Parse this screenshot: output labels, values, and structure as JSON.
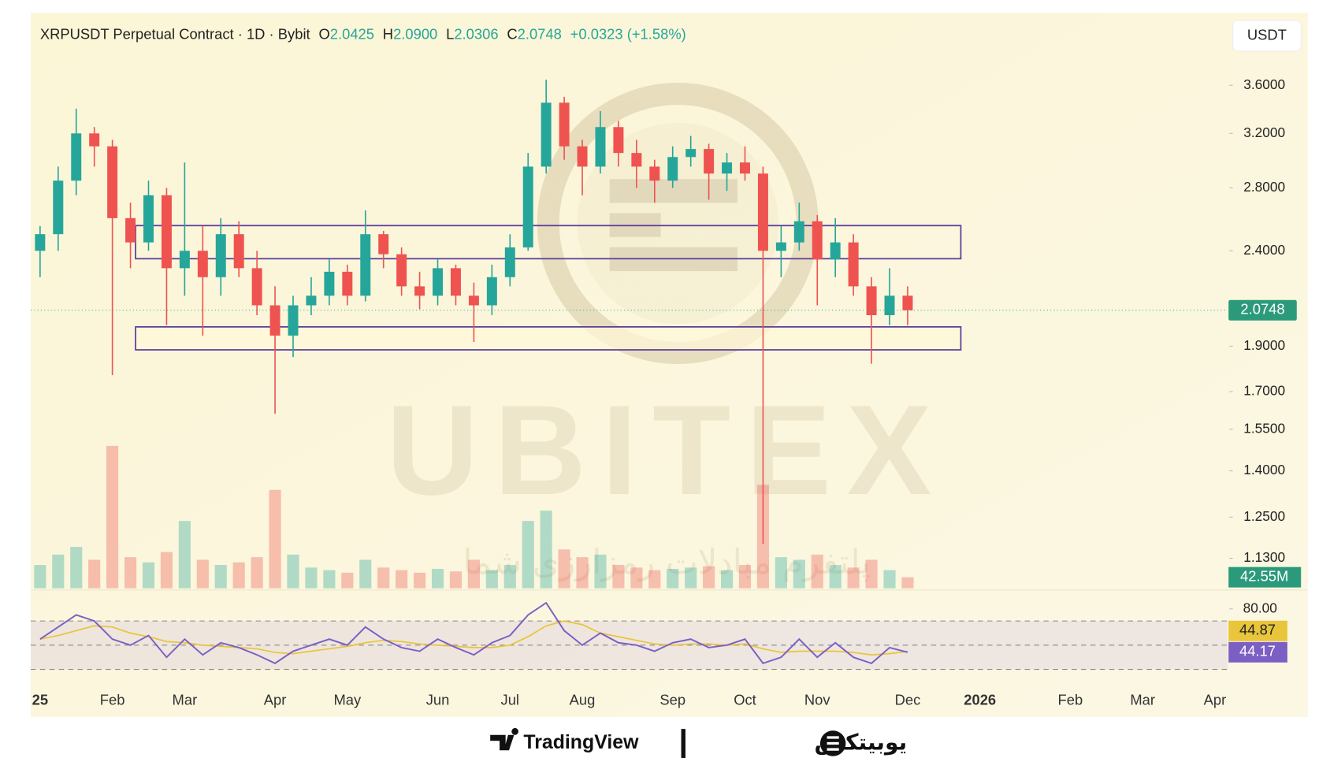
{
  "chart_data": {
    "type": "candlestick",
    "header": {
      "symbol": "XRPUSDT Perpetual Contract · 1D · Bybit",
      "open_label": "O",
      "open": "2.0425",
      "high_label": "H",
      "high": "2.0900",
      "low_label": "L",
      "low": "2.0306",
      "close_label": "C",
      "close": "2.0748",
      "change": "+0.0323 (+1.58%)"
    },
    "currency_button": "USDT",
    "categories": [
      "25",
      null,
      null,
      null,
      "Feb",
      null,
      null,
      null,
      "Mar",
      null,
      null,
      null,
      null,
      "Apr",
      null,
      null,
      null,
      "May",
      null,
      null,
      null,
      null,
      "Jun",
      null,
      null,
      null,
      "Jul",
      null,
      null,
      null,
      "Aug",
      null,
      null,
      null,
      null,
      "Sep",
      null,
      null,
      null,
      "Oct",
      null,
      null,
      null,
      "Nov",
      null,
      null,
      null,
      null,
      "Dec",
      null,
      null,
      null,
      "2026",
      null,
      null,
      null,
      null,
      "Feb",
      null,
      null,
      null,
      "Mar",
      null,
      null,
      null,
      "Apr"
    ],
    "open": [
      2.4,
      2.5,
      2.85,
      3.2,
      3.1,
      2.6,
      2.45,
      2.75,
      2.3,
      2.4,
      2.25,
      2.5,
      2.3,
      2.1,
      1.95,
      2.1,
      2.15,
      2.28,
      2.15,
      2.5,
      2.38,
      2.2,
      2.15,
      2.3,
      2.15,
      2.1,
      2.25,
      2.42,
      2.95,
      3.45,
      3.1,
      2.95,
      3.25,
      3.05,
      2.95,
      2.85,
      3.02,
      3.08,
      2.9,
      2.98,
      2.9,
      2.4,
      2.45,
      2.58,
      2.35,
      2.45,
      2.2,
      2.05,
      2.15,
      null,
      null,
      null,
      null,
      null,
      null,
      null,
      null,
      null,
      null,
      null,
      null,
      null,
      null,
      null,
      null,
      null
    ],
    "high": [
      2.55,
      2.95,
      3.4,
      3.25,
      3.15,
      2.7,
      2.85,
      2.8,
      2.98,
      2.55,
      2.6,
      2.58,
      2.4,
      2.2,
      2.15,
      2.25,
      2.35,
      2.32,
      2.65,
      2.52,
      2.42,
      2.28,
      2.35,
      2.32,
      2.22,
      2.32,
      2.5,
      3.05,
      3.65,
      3.5,
      3.15,
      3.38,
      3.3,
      3.15,
      3.0,
      3.1,
      3.18,
      3.12,
      3.05,
      3.1,
      2.95,
      2.55,
      2.7,
      2.62,
      2.6,
      2.5,
      2.25,
      2.3,
      2.2,
      null,
      null,
      null,
      null,
      null,
      null,
      null,
      null,
      null,
      null,
      null,
      null,
      null,
      null,
      null,
      null,
      null
    ],
    "low": [
      2.25,
      2.4,
      2.75,
      2.95,
      1.77,
      2.3,
      2.4,
      2.0,
      2.15,
      1.95,
      2.15,
      2.25,
      2.05,
      1.61,
      1.85,
      2.05,
      2.1,
      2.1,
      2.12,
      2.3,
      2.15,
      2.08,
      2.1,
      2.1,
      1.92,
      2.05,
      2.2,
      2.4,
      2.9,
      3.0,
      2.75,
      2.9,
      2.95,
      2.8,
      2.7,
      2.8,
      2.95,
      2.72,
      2.78,
      2.85,
      1.17,
      2.25,
      2.4,
      2.1,
      2.25,
      2.15,
      1.82,
      2.0,
      2.0,
      null,
      null,
      null,
      null,
      null,
      null,
      null,
      null,
      null,
      null,
      null,
      null,
      null,
      null,
      null,
      null,
      null
    ],
    "close": [
      2.5,
      2.85,
      3.2,
      3.1,
      2.6,
      2.45,
      2.75,
      2.3,
      2.4,
      2.25,
      2.5,
      2.3,
      2.1,
      1.95,
      2.1,
      2.15,
      2.28,
      2.15,
      2.5,
      2.38,
      2.2,
      2.15,
      2.3,
      2.15,
      2.1,
      2.25,
      2.42,
      2.95,
      3.45,
      3.1,
      2.95,
      3.25,
      3.05,
      2.95,
      2.85,
      3.02,
      3.08,
      2.9,
      2.98,
      2.9,
      2.4,
      2.45,
      2.58,
      2.35,
      2.45,
      2.2,
      2.05,
      2.15,
      2.0748,
      null,
      null,
      null,
      null,
      null,
      null,
      null,
      null,
      null,
      null,
      null,
      null,
      null,
      null,
      null,
      null,
      null
    ],
    "up_color": "#26a69a",
    "down_color": "#ef5350",
    "log_scale": true,
    "ylim": [
      1.05,
      4.3
    ],
    "yticks": [
      {
        "value": 3.6,
        "label": "3.6000"
      },
      {
        "value": 3.2,
        "label": "3.2000"
      },
      {
        "value": 2.8,
        "label": "2.8000"
      },
      {
        "value": 2.4,
        "label": "2.4000"
      },
      {
        "value": 1.9,
        "label": "1.9000"
      },
      {
        "value": 1.7,
        "label": "1.7000"
      },
      {
        "value": 1.55,
        "label": "1.5500"
      },
      {
        "value": 1.4,
        "label": "1.4000"
      },
      {
        "value": 1.25,
        "label": "1.2500"
      },
      {
        "value": 1.13,
        "label": "1.1300"
      }
    ],
    "zones": [
      {
        "from": 2.354,
        "to": 2.553,
        "color": "#5b3a9a"
      },
      {
        "from": 1.883,
        "to": 1.992,
        "color": "#5b3a9a"
      }
    ],
    "volume": {
      "values": [
        90,
        130,
        160,
        110,
        550,
        120,
        100,
        140,
        260,
        110,
        90,
        100,
        120,
        380,
        130,
        80,
        70,
        60,
        110,
        80,
        70,
        60,
        75,
        65,
        110,
        70,
        90,
        260,
        300,
        150,
        120,
        130,
        90,
        80,
        70,
        75,
        80,
        85,
        70,
        90,
        400,
        120,
        110,
        130,
        90,
        80,
        110,
        70,
        42.55,
        null,
        null,
        null,
        null,
        null,
        null,
        null,
        null,
        null,
        null,
        null,
        null,
        null,
        null,
        null,
        null,
        null
      ],
      "ylim": [
        0,
        560
      ],
      "last_label": "42.55M"
    },
    "rsi": {
      "values": [
        55,
        65,
        75,
        70,
        55,
        50,
        58,
        40,
        55,
        42,
        52,
        48,
        42,
        35,
        45,
        50,
        55,
        50,
        65,
        55,
        48,
        45,
        55,
        48,
        42,
        52,
        58,
        75,
        85,
        62,
        50,
        60,
        52,
        50,
        45,
        52,
        55,
        48,
        50,
        55,
        35,
        40,
        55,
        40,
        52,
        40,
        35,
        48,
        44.17,
        null,
        null,
        null,
        null,
        null,
        null,
        null,
        null,
        null,
        null,
        null,
        null,
        null,
        null,
        null,
        null,
        null
      ],
      "ma": [
        55,
        58,
        62,
        66,
        65,
        60,
        57,
        53,
        52,
        50,
        49,
        48,
        47,
        44,
        43,
        45,
        47,
        49,
        52,
        54,
        53,
        51,
        50,
        49,
        48,
        48,
        50,
        57,
        66,
        70,
        67,
        60,
        57,
        54,
        51,
        50,
        51,
        51,
        50,
        51,
        47,
        44,
        45,
        45,
        45,
        44,
        42,
        43,
        44.87,
        null,
        null,
        null,
        null,
        null,
        null,
        null,
        null,
        null,
        null,
        null,
        null,
        null,
        null,
        null,
        null,
        null
      ],
      "color": "#7b5fc4",
      "ma_color": "#e8c53a",
      "ylim": [
        16,
        90
      ],
      "yticks": [
        {
          "value": 80,
          "label": "80.00"
        }
      ],
      "bands": [
        70,
        50,
        30
      ]
    },
    "watermark": {
      "brand": "UBITEX",
      "tagline": "پلتفرم مبادلات رمزارزی شما"
    },
    "footer": {
      "left": "TradingView",
      "right": "یوبیتکس"
    }
  }
}
